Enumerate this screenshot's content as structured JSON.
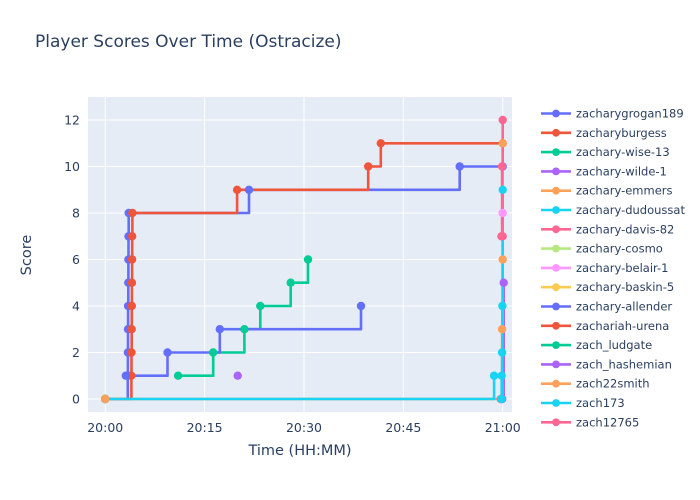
{
  "title": "Player Scores Over Time (Ostracize)",
  "chart_data": {
    "type": "line",
    "step": "hv",
    "title": "Player Scores Over Time (Ostracize)",
    "xlabel": "Time (HH:MM)",
    "ylabel": "Score",
    "x_unit": "minutes after 20:00",
    "x_ticks": [
      {
        "minutes": 0,
        "label": "20:00"
      },
      {
        "minutes": 15,
        "label": "20:15"
      },
      {
        "minutes": 30,
        "label": "20:30"
      },
      {
        "minutes": 45,
        "label": "20:45"
      },
      {
        "minutes": 60,
        "label": "21:00"
      }
    ],
    "y_ticks": [
      0,
      2,
      4,
      6,
      8,
      10,
      12
    ],
    "x_range_minutes": [
      -2.6,
      61.4
    ],
    "y_range": [
      -0.56,
      12.99
    ],
    "grid": true,
    "legend_position": "right",
    "plot_bg": "#E5ECF6",
    "grid_color": "#FFFFFF",
    "text_color": "#2a3f5f",
    "series": [
      {
        "name": "zacharygrogan189",
        "color": "#636EFA",
        "z": 1,
        "points": [
          [
            0,
            0
          ],
          [
            3.4,
            1
          ],
          [
            3.42,
            2
          ],
          [
            3.44,
            3
          ],
          [
            3.46,
            4
          ],
          [
            3.48,
            5
          ],
          [
            3.5,
            6
          ],
          [
            3.52,
            7
          ],
          [
            3.54,
            8
          ],
          [
            21.7,
            9
          ],
          [
            53.5,
            10
          ],
          [
            60,
            10
          ]
        ]
      },
      {
        "name": "zacharyburgess",
        "color": "#EF553B",
        "z": 2,
        "points": [
          [
            0,
            0
          ],
          [
            3.95,
            1
          ],
          [
            3.97,
            2
          ],
          [
            3.99,
            3
          ],
          [
            4.01,
            4
          ],
          [
            4.03,
            5
          ],
          [
            4.05,
            6
          ],
          [
            4.07,
            7
          ],
          [
            4.1,
            8
          ],
          [
            19.9,
            9
          ],
          [
            39.7,
            10
          ],
          [
            41.6,
            11
          ],
          [
            60,
            11
          ]
        ]
      },
      {
        "name": "zachary-wise-13",
        "color": "#00CC96",
        "z": 3,
        "points": [
          [
            11,
            1
          ],
          [
            16.3,
            2
          ],
          [
            21,
            3
          ],
          [
            23.4,
            4
          ],
          [
            28,
            5
          ],
          [
            30.6,
            6
          ]
        ]
      },
      {
        "name": "zachary-wilde-1",
        "color": "#AB63FA",
        "z": 4,
        "points": [
          [
            20,
            1
          ]
        ]
      },
      {
        "name": "zachary-emmers",
        "color": "#FFA15A",
        "z": 5,
        "points": [
          [
            59.9,
            0
          ],
          [
            60,
            11
          ]
        ]
      },
      {
        "name": "zachary-dudoussat",
        "color": "#19D3F3",
        "z": 15,
        "points": [
          [
            0,
            0
          ],
          [
            58.7,
            1
          ]
        ]
      },
      {
        "name": "zachary-davis-82",
        "color": "#FF6692",
        "z": 6,
        "points": [
          [
            59.7,
            0
          ],
          [
            60,
            7
          ]
        ]
      },
      {
        "name": "zachary-cosmo",
        "color": "#B6E880",
        "z": 7,
        "points": [
          [
            0,
            0
          ]
        ]
      },
      {
        "name": "zachary-belair-1",
        "color": "#FF97FF",
        "z": 8,
        "points": [
          [
            59.9,
            0
          ],
          [
            60,
            8
          ]
        ]
      },
      {
        "name": "zachary-baskin-5",
        "color": "#FECB52",
        "z": 9,
        "points": [
          [
            0,
            0
          ]
        ]
      },
      {
        "name": "zachary-allender",
        "color": "#636EFA",
        "z": 10,
        "points": [
          [
            3.1,
            1
          ],
          [
            9.4,
            2
          ],
          [
            17.3,
            3
          ],
          [
            38.6,
            4
          ]
        ]
      },
      {
        "name": "zachariah-urena",
        "color": "#EF553B",
        "z": 11,
        "points": [
          [
            0,
            0
          ]
        ]
      },
      {
        "name": "zach_ludgate",
        "color": "#00CC96",
        "z": 12,
        "points": [
          [
            0,
            0
          ]
        ]
      },
      {
        "name": "zach_hashemian",
        "color": "#AB63FA",
        "z": 13,
        "points": [
          [
            59.9,
            0
          ],
          [
            60.15,
            5
          ]
        ]
      },
      {
        "name": "zach22smith",
        "color": "#FFA15A",
        "z": 14,
        "points": [
          [
            0,
            0
          ],
          [
            59.9,
            3
          ],
          [
            60,
            6
          ]
        ]
      },
      {
        "name": "zach173",
        "color": "#19D3F3",
        "z": 16,
        "points": [
          [
            59.8,
            0
          ],
          [
            59.85,
            1
          ],
          [
            59.9,
            2
          ],
          [
            59.95,
            4
          ],
          [
            60,
            9
          ]
        ]
      },
      {
        "name": "zach12765",
        "color": "#FF6692",
        "z": 17,
        "points": [
          [
            59.8,
            7
          ],
          [
            59.9,
            10
          ],
          [
            60,
            12
          ]
        ]
      }
    ]
  }
}
